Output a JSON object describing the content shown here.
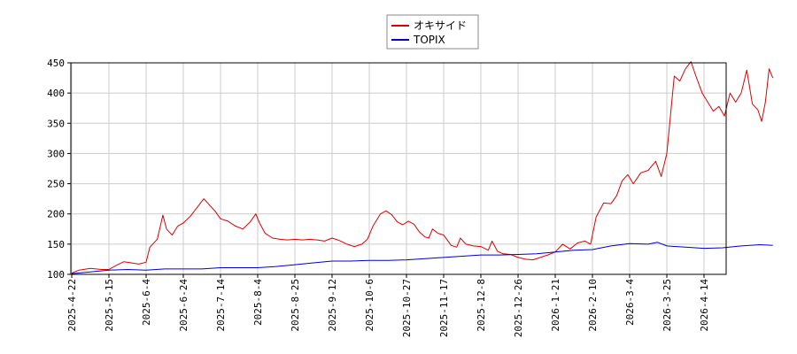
{
  "chart_data": {
    "type": "line",
    "x_labels": [
      "2025-4-22",
      "2025-5-15",
      "2025-6-4",
      "2025-6-24",
      "2025-7-14",
      "2025-8-4",
      "2025-8-25",
      "2025-9-12",
      "2025-10-6",
      "2025-10-27",
      "2025-11-17",
      "2025-12-8",
      "2025-12-26",
      "2026-1-21",
      "2026-2-10",
      "2026-3-4",
      "2026-3-25",
      "2026-4-14"
    ],
    "ylim": [
      100,
      450
    ],
    "y_ticks": [
      100,
      150,
      200,
      250,
      300,
      350,
      400,
      450
    ],
    "grid": true,
    "legend_position": "top-center",
    "series": [
      {
        "name": "オキサイド",
        "color": "#dd0000",
        "points": [
          [
            0,
            102
          ],
          [
            0.2,
            107
          ],
          [
            0.5,
            110
          ],
          [
            0.8,
            108
          ],
          [
            1.0,
            108
          ],
          [
            1.2,
            115
          ],
          [
            1.4,
            121
          ],
          [
            1.6,
            119
          ],
          [
            1.8,
            117
          ],
          [
            2.0,
            120
          ],
          [
            2.1,
            145
          ],
          [
            2.3,
            158
          ],
          [
            2.45,
            198
          ],
          [
            2.55,
            175
          ],
          [
            2.7,
            165
          ],
          [
            2.85,
            180
          ],
          [
            3.0,
            185
          ],
          [
            3.2,
            197
          ],
          [
            3.4,
            213
          ],
          [
            3.55,
            225
          ],
          [
            3.7,
            215
          ],
          [
            3.85,
            205
          ],
          [
            4.0,
            192
          ],
          [
            4.2,
            188
          ],
          [
            4.4,
            180
          ],
          [
            4.6,
            175
          ],
          [
            4.8,
            187
          ],
          [
            4.95,
            200
          ],
          [
            5.05,
            185
          ],
          [
            5.2,
            168
          ],
          [
            5.4,
            160
          ],
          [
            5.6,
            158
          ],
          [
            5.8,
            157
          ],
          [
            6.0,
            158
          ],
          [
            6.2,
            157
          ],
          [
            6.4,
            158
          ],
          [
            6.6,
            157
          ],
          [
            6.8,
            155
          ],
          [
            7.0,
            160
          ],
          [
            7.2,
            156
          ],
          [
            7.4,
            150
          ],
          [
            7.6,
            146
          ],
          [
            7.8,
            150
          ],
          [
            7.95,
            158
          ],
          [
            8.1,
            180
          ],
          [
            8.3,
            200
          ],
          [
            8.45,
            205
          ],
          [
            8.6,
            199
          ],
          [
            8.75,
            187
          ],
          [
            8.9,
            182
          ],
          [
            9.05,
            188
          ],
          [
            9.2,
            183
          ],
          [
            9.35,
            170
          ],
          [
            9.5,
            162
          ],
          [
            9.6,
            160
          ],
          [
            9.7,
            175
          ],
          [
            9.85,
            168
          ],
          [
            10.0,
            165
          ],
          [
            10.2,
            148
          ],
          [
            10.35,
            145
          ],
          [
            10.45,
            160
          ],
          [
            10.6,
            150
          ],
          [
            10.8,
            147
          ],
          [
            11.0,
            146
          ],
          [
            11.2,
            140
          ],
          [
            11.3,
            155
          ],
          [
            11.45,
            138
          ],
          [
            11.6,
            134
          ],
          [
            11.8,
            133
          ],
          [
            12.0,
            128
          ],
          [
            12.2,
            125
          ],
          [
            12.4,
            124
          ],
          [
            12.6,
            128
          ],
          [
            12.8,
            132
          ],
          [
            13.0,
            137
          ],
          [
            13.2,
            150
          ],
          [
            13.4,
            142
          ],
          [
            13.6,
            152
          ],
          [
            13.8,
            155
          ],
          [
            13.95,
            150
          ],
          [
            14.1,
            195
          ],
          [
            14.3,
            218
          ],
          [
            14.5,
            217
          ],
          [
            14.65,
            230
          ],
          [
            14.8,
            255
          ],
          [
            14.95,
            265
          ],
          [
            15.1,
            250
          ],
          [
            15.3,
            268
          ],
          [
            15.5,
            272
          ],
          [
            15.7,
            287
          ],
          [
            15.85,
            262
          ],
          [
            16.0,
            300
          ],
          [
            16.2,
            428
          ],
          [
            16.35,
            420
          ],
          [
            16.5,
            440
          ],
          [
            16.65,
            452
          ],
          [
            16.8,
            425
          ],
          [
            16.95,
            400
          ],
          [
            17.1,
            385
          ],
          [
            17.25,
            370
          ],
          [
            17.4,
            378
          ],
          [
            17.55,
            362
          ],
          [
            17.7,
            400
          ],
          [
            17.85,
            385
          ],
          [
            18.0,
            400
          ],
          [
            18.15,
            438
          ],
          [
            18.3,
            382
          ],
          [
            18.45,
            372
          ],
          [
            18.55,
            353
          ],
          [
            18.65,
            385
          ],
          [
            18.75,
            440
          ],
          [
            18.85,
            425
          ]
        ]
      },
      {
        "name": "TOPIX",
        "color": "#0000cc",
        "points": [
          [
            0,
            101
          ],
          [
            0.5,
            104
          ],
          [
            1.0,
            107
          ],
          [
            1.5,
            108
          ],
          [
            2.0,
            107
          ],
          [
            2.5,
            109
          ],
          [
            3.0,
            109
          ],
          [
            3.5,
            109
          ],
          [
            4.0,
            111
          ],
          [
            4.5,
            111
          ],
          [
            5.0,
            111
          ],
          [
            5.5,
            113
          ],
          [
            6.0,
            116
          ],
          [
            6.5,
            119
          ],
          [
            7.0,
            122
          ],
          [
            7.5,
            122
          ],
          [
            8.0,
            123
          ],
          [
            8.5,
            123
          ],
          [
            9.0,
            124
          ],
          [
            9.5,
            126
          ],
          [
            10.0,
            128
          ],
          [
            10.5,
            130
          ],
          [
            11.0,
            132
          ],
          [
            11.5,
            132
          ],
          [
            12.0,
            133
          ],
          [
            12.5,
            134
          ],
          [
            13.0,
            137
          ],
          [
            13.5,
            140
          ],
          [
            14.0,
            141
          ],
          [
            14.5,
            147
          ],
          [
            15.0,
            151
          ],
          [
            15.5,
            150
          ],
          [
            15.75,
            153
          ],
          [
            16.0,
            147
          ],
          [
            16.5,
            145
          ],
          [
            17.0,
            143
          ],
          [
            17.5,
            144
          ],
          [
            18.0,
            147
          ],
          [
            18.5,
            149
          ],
          [
            18.85,
            148
          ]
        ]
      }
    ]
  }
}
